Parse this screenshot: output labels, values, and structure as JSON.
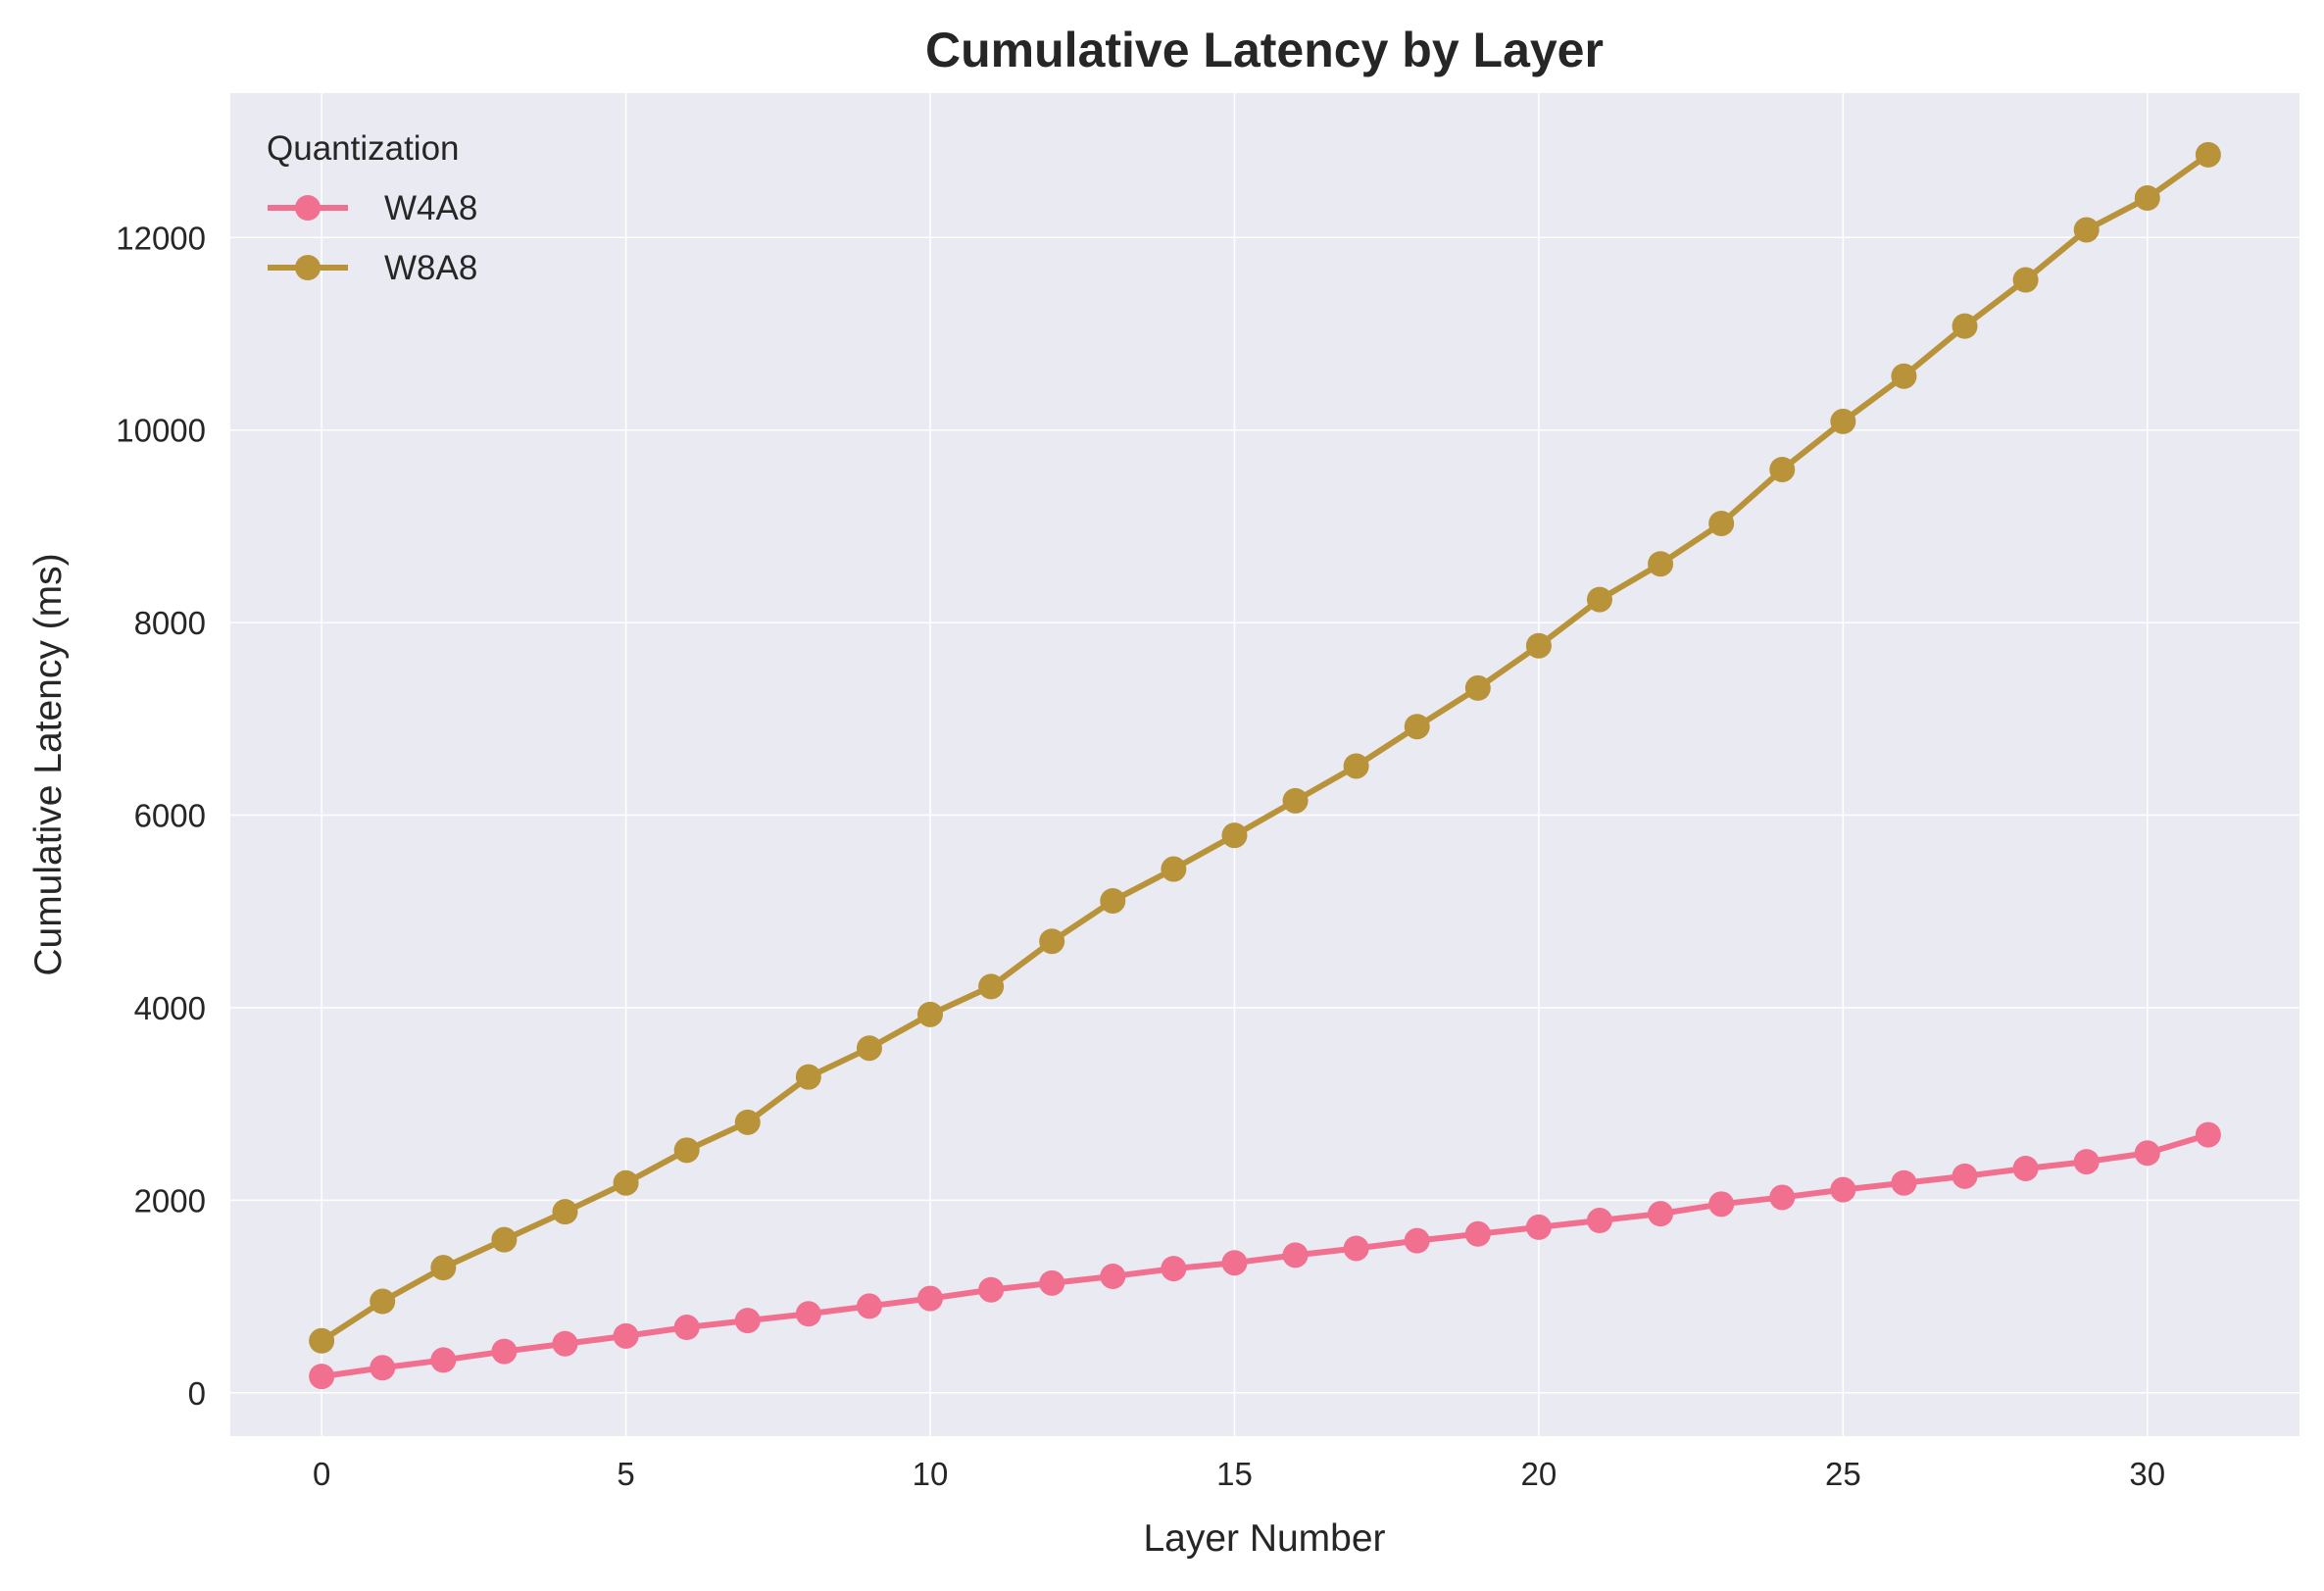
{
  "chart_data": {
    "type": "line",
    "title": "Cumulative Latency by Layer",
    "xlabel": "Layer Number",
    "ylabel": "Cumulative Latency (ms)",
    "xlim": [
      -1.5,
      32.5
    ],
    "ylim": [
      -450,
      13500
    ],
    "xticks": [
      0,
      5,
      10,
      15,
      20,
      25,
      30
    ],
    "yticks": [
      0,
      2000,
      4000,
      6000,
      8000,
      10000,
      12000
    ],
    "grid": true,
    "legend": {
      "title": "Quantization",
      "position": "top-left"
    },
    "x": [
      0,
      1,
      2,
      3,
      4,
      5,
      6,
      7,
      8,
      9,
      10,
      11,
      12,
      13,
      14,
      15,
      16,
      17,
      18,
      19,
      20,
      21,
      22,
      23,
      24,
      25,
      26,
      27,
      28,
      29,
      30,
      31
    ],
    "series": [
      {
        "name": "W4A8",
        "color": "#f2708f",
        "values": [
          170,
          260,
          340,
          430,
          510,
          590,
          680,
          750,
          820,
          900,
          980,
          1070,
          1140,
          1210,
          1290,
          1350,
          1430,
          1500,
          1580,
          1650,
          1720,
          1790,
          1860,
          1960,
          2030,
          2110,
          2180,
          2250,
          2330,
          2400,
          2490,
          2680
        ]
      },
      {
        "name": "W8A8",
        "color": "#b8933a",
        "values": [
          540,
          950,
          1300,
          1590,
          1880,
          2180,
          2520,
          2810,
          3280,
          3580,
          3930,
          4220,
          4690,
          5110,
          5440,
          5790,
          6150,
          6510,
          6920,
          7320,
          7760,
          8240,
          8610,
          9030,
          9590,
          10090,
          10560,
          11080,
          11560,
          12080,
          12410,
          12860
        ]
      }
    ],
    "style": {
      "plot_bg": "#eaeaf2",
      "grid_color": "#ffffff",
      "text_color": "#262626"
    }
  }
}
